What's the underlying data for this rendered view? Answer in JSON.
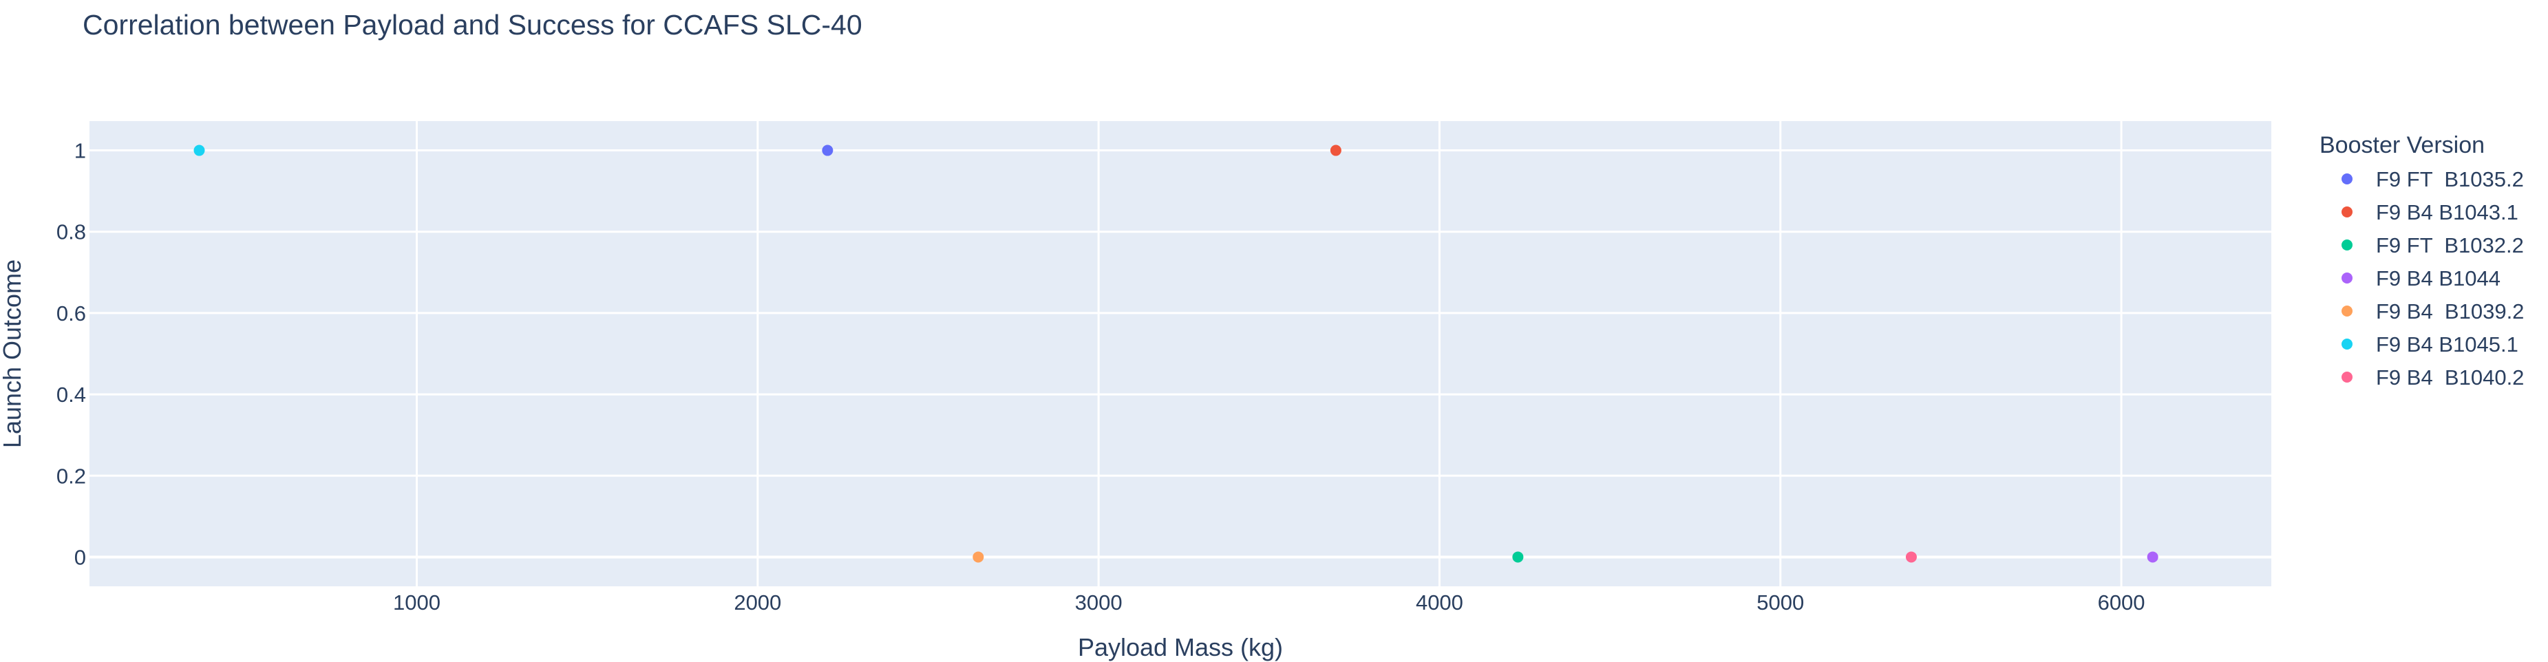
{
  "chart_data": {
    "type": "scatter",
    "title": "Correlation between Payload and Success for CCAFS SLC-40",
    "xlabel": "Payload Mass (kg)",
    "ylabel": "Launch Outcome",
    "xlim": [
      40,
      6440
    ],
    "ylim": [
      -0.072,
      1.072
    ],
    "x_ticks": [
      1000,
      2000,
      3000,
      4000,
      5000,
      6000
    ],
    "x_tick_labels": [
      "1000",
      "2000",
      "3000",
      "4000",
      "5000",
      "6000"
    ],
    "y_ticks": [
      0,
      0.2,
      0.4,
      0.6,
      0.8,
      1
    ],
    "y_tick_labels": [
      "0",
      "0.2",
      "0.4",
      "0.6",
      "0.8",
      "1"
    ],
    "grid": true,
    "legend_title": "Booster Version",
    "legend_position": "right",
    "plot_background": "#e5ecf6",
    "series": [
      {
        "name": "F9 FT  B1035.2",
        "color": "#636efa",
        "points": [
          {
            "x": 2205,
            "y": 1
          }
        ]
      },
      {
        "name": "F9 B4 B1043.1",
        "color": "#ef553b",
        "points": [
          {
            "x": 3696,
            "y": 1
          }
        ]
      },
      {
        "name": "F9 FT  B1032.2",
        "color": "#00cc96",
        "points": [
          {
            "x": 4230,
            "y": 0
          }
        ]
      },
      {
        "name": "F9 B4 B1044",
        "color": "#ab63fa",
        "points": [
          {
            "x": 6092,
            "y": 0
          }
        ]
      },
      {
        "name": "F9 B4  B1039.2",
        "color": "#ffa15a",
        "points": [
          {
            "x": 2647,
            "y": 0
          }
        ]
      },
      {
        "name": "F9 B4 B1045.1",
        "color": "#19d3f3",
        "points": [
          {
            "x": 362,
            "y": 1
          }
        ]
      },
      {
        "name": "F9 B4  B1040.2",
        "color": "#ff6692",
        "points": [
          {
            "x": 5384,
            "y": 0
          }
        ]
      }
    ]
  }
}
